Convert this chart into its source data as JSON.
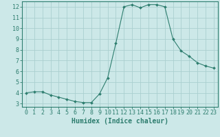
{
  "x": [
    0,
    1,
    2,
    3,
    4,
    5,
    6,
    7,
    8,
    9,
    10,
    11,
    12,
    13,
    14,
    15,
    16,
    17,
    18,
    19,
    20,
    21,
    22,
    23
  ],
  "y": [
    4.0,
    4.1,
    4.1,
    3.8,
    3.6,
    3.4,
    3.2,
    3.1,
    3.1,
    3.9,
    5.4,
    8.6,
    12.0,
    12.2,
    11.9,
    12.2,
    12.2,
    12.0,
    9.0,
    7.9,
    7.4,
    6.8,
    6.5,
    6.3
  ],
  "line_color": "#2d7d6e",
  "marker": "D",
  "marker_size": 2.0,
  "bg_color": "#cce8e8",
  "grid_color": "#aacfcf",
  "xlabel": "Humidex (Indice chaleur)",
  "xlim": [
    -0.5,
    23.5
  ],
  "ylim": [
    2.7,
    12.5
  ],
  "yticks": [
    3,
    4,
    5,
    6,
    7,
    8,
    9,
    10,
    11,
    12
  ],
  "xticks": [
    0,
    1,
    2,
    3,
    4,
    5,
    6,
    7,
    8,
    9,
    10,
    11,
    12,
    13,
    14,
    15,
    16,
    17,
    18,
    19,
    20,
    21,
    22,
    23
  ],
  "tick_label_size": 6,
  "xlabel_size": 7,
  "axis_color": "#2d7d6e",
  "linewidth": 0.8
}
